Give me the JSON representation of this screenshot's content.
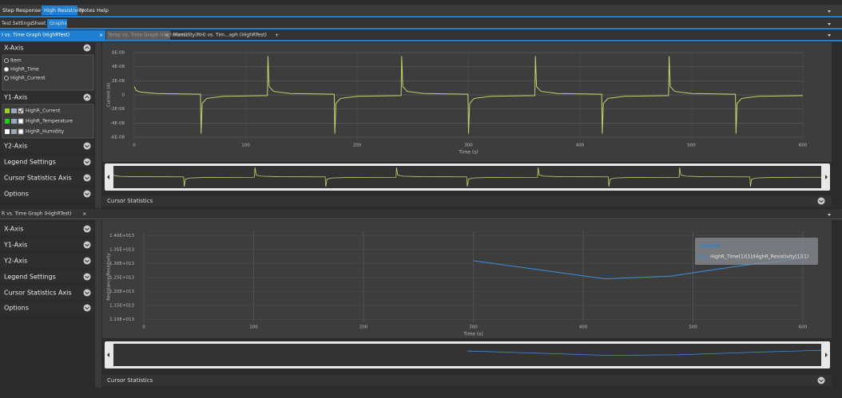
{
  "menu": [
    "Step Response",
    "High Resistivity",
    "Notes",
    "Help"
  ],
  "subtabs": [
    "Test Settings",
    "Sheet",
    "Graphs"
  ],
  "graph_tabs": [
    "I vs. Time Graph (HighRTest)",
    "Temp vs. Time Graph (HighRTest)",
    "Humidity(RH) vs. Tim...aph (HighRTest)"
  ],
  "close": "×",
  "add_tab": "+",
  "panel1": {
    "sections": [
      "X-Axis",
      "Y1-Axis",
      "Y2-Axis",
      "Legend Settings",
      "Cursor Statistics Axis",
      "Options"
    ],
    "x_items": [
      "Item",
      "HighR_Time",
      "HighR_Current"
    ],
    "y1_items": [
      "HighR_Current",
      "HighR_Temperature",
      "HighR_Humidity"
    ]
  },
  "cursor_statistics": "Cursor Statistics",
  "graph2_tab": "R vs. Time Graph (HighRTest)",
  "panel2": {
    "sections": [
      "X-Axis",
      "Y1-Axis",
      "Y2-Axis",
      "Legend Settings",
      "Cursor Statistics Axis",
      "Options"
    ]
  },
  "chart_data": [
    {
      "type": "line",
      "x_label": "Time (s)",
      "y_label": "Current (A)",
      "x": [
        0,
        2,
        6,
        20,
        59.5,
        60,
        61,
        65,
        80,
        119.5,
        120,
        121,
        125,
        140,
        179.5,
        180,
        181,
        185,
        200,
        239.5,
        240,
        241,
        245,
        260,
        299.5,
        300,
        301,
        305,
        320,
        359.5,
        360,
        361,
        365,
        380,
        419.5,
        420,
        421,
        425,
        440,
        479.5,
        480,
        481,
        485,
        500,
        539.5,
        540,
        541,
        545,
        560,
        600
      ],
      "series": [
        {
          "color": "#c3d46c",
          "values": [
            1.2e-08,
            6e-09,
            4e-09,
            2e-09,
            1e-09,
            -5.5e-08,
            -1.2e-08,
            -5e-09,
            -2e-09,
            -1e-09,
            5.5e-08,
            1.2e-08,
            5e-09,
            2e-09,
            1e-09,
            -5.5e-08,
            -1.2e-08,
            -5e-09,
            -2e-09,
            -1e-09,
            5.5e-08,
            1.2e-08,
            5e-09,
            2e-09,
            1e-09,
            -5.5e-08,
            -1.2e-08,
            -5e-09,
            -2e-09,
            -1e-09,
            5.5e-08,
            1.2e-08,
            5e-09,
            2e-09,
            1e-09,
            -5.5e-08,
            -1.2e-08,
            -5e-09,
            -2e-09,
            -1e-09,
            5.5e-08,
            1.2e-08,
            5e-09,
            2e-09,
            1e-09,
            -5.5e-08,
            -1.2e-08,
            -5e-09,
            -2e-09,
            -1e-09
          ]
        }
      ],
      "xlim": [
        0,
        600
      ],
      "xticks": [
        0,
        100,
        200,
        300,
        400,
        500,
        600
      ],
      "ylim": [
        -6.45e-08,
        6.45e-08
      ],
      "yticks": [
        {
          "value": 6e-08,
          "label": "6E-08"
        },
        {
          "value": 4e-08,
          "label": "4E-08"
        },
        {
          "value": 2e-08,
          "label": "2E-08"
        },
        0,
        {
          "value": -2e-08,
          "label": "-2E-08"
        },
        {
          "value": -4e-08,
          "label": "-4E-08"
        },
        {
          "value": -6e-08,
          "label": "-6E-08"
        }
      ],
      "grid": true
    },
    {
      "type": "line",
      "x_label": "Time (s)",
      "y_label": "Resistance/Resistivity",
      "legend_title": "Legend",
      "legend": "upper right",
      "x": [
        300,
        420,
        480,
        540,
        600
      ],
      "series": [
        {
          "name": "HighR_Time(1)(1)/HighR_Resistivity(1)(1)",
          "color": "#3d8fe0",
          "values": [
            13100000000000.0,
            12450000000000.0,
            12550000000000.0,
            12900000000000.0,
            13200000000000.0
          ]
        }
      ],
      "xlim": [
        0,
        600
      ],
      "xticks": [
        0,
        100,
        200,
        300,
        400,
        500,
        600
      ],
      "ylim": [
        10900000000000.0,
        14150000000000.0
      ],
      "yticks": [
        {
          "value": 14000000000000.0,
          "label": "1.40E+013"
        },
        {
          "value": 13500000000000.0,
          "label": "1.35E+013"
        },
        {
          "value": 13000000000000.0,
          "label": "1.30E+013"
        },
        {
          "value": 12500000000000.0,
          "label": "1.25E+013"
        },
        {
          "value": 12000000000000.0,
          "label": "1.20E+013"
        },
        {
          "value": 11500000000000.0,
          "label": "1.15E+013"
        },
        {
          "value": 11000000000000.0,
          "label": "1.10E+013"
        }
      ],
      "grid": true
    }
  ]
}
